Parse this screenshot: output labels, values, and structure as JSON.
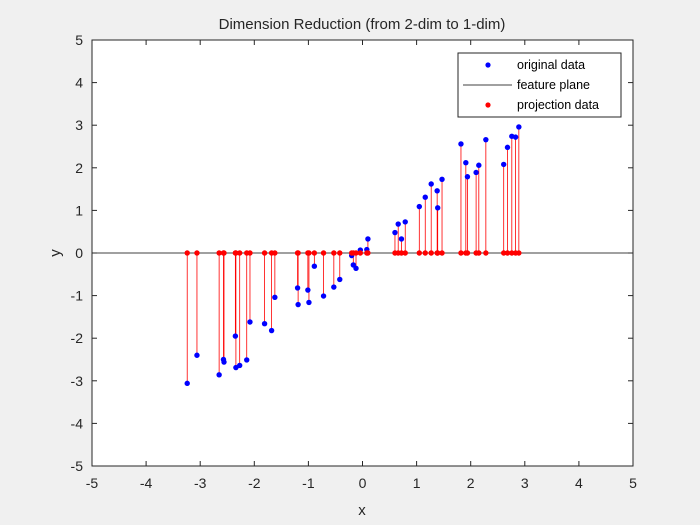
{
  "chart_data": {
    "type": "scatter",
    "title": "Dimension Reduction (from 2-dim to 1-dim)",
    "xlabel": "x",
    "ylabel": "y",
    "xlim": [
      -5,
      5
    ],
    "ylim": [
      -5,
      5
    ],
    "xticks": [
      -5,
      -4,
      -3,
      -2,
      -1,
      0,
      1,
      2,
      3,
      4,
      5
    ],
    "yticks": [
      -5,
      -4,
      -3,
      -2,
      -1,
      0,
      1,
      2,
      3,
      4,
      5
    ],
    "grid": false,
    "legend_position": "top-right",
    "feature_plane": {
      "y": 0
    },
    "colors": {
      "original": "#0000ff",
      "projection": "#ff0000",
      "feature_plane": "#000000",
      "connector": "#ff0000",
      "background": "#f0f0f0",
      "axes_bg": "#ffffff"
    },
    "series": [
      {
        "name": "original data",
        "marker": "dot",
        "color": "#0000ff",
        "points": [
          [
            -3.24,
            -3.06
          ],
          [
            -3.06,
            -2.4
          ],
          [
            -2.65,
            -2.86
          ],
          [
            -2.57,
            -2.5
          ],
          [
            -2.56,
            -2.56
          ],
          [
            -2.35,
            -1.95
          ],
          [
            -2.34,
            -2.69
          ],
          [
            -2.27,
            -2.64
          ],
          [
            -2.14,
            -2.51
          ],
          [
            -2.08,
            -1.62
          ],
          [
            -1.81,
            -1.66
          ],
          [
            -1.68,
            -1.82
          ],
          [
            -1.62,
            -1.04
          ],
          [
            -1.2,
            -0.82
          ],
          [
            -1.19,
            -1.21
          ],
          [
            -1.01,
            -0.87
          ],
          [
            -0.99,
            -1.16
          ],
          [
            -0.89,
            -0.31
          ],
          [
            -0.72,
            -1.01
          ],
          [
            -0.53,
            -0.8
          ],
          [
            -0.42,
            -0.62
          ],
          [
            -0.2,
            -0.06
          ],
          [
            -0.17,
            -0.28
          ],
          [
            -0.12,
            -0.36
          ],
          [
            -0.04,
            0.07
          ],
          [
            0.08,
            0.08
          ],
          [
            0.1,
            0.33
          ],
          [
            0.6,
            0.48
          ],
          [
            0.66,
            0.68
          ],
          [
            0.72,
            0.33
          ],
          [
            0.79,
            0.73
          ],
          [
            1.05,
            1.09
          ],
          [
            1.16,
            1.31
          ],
          [
            1.27,
            1.62
          ],
          [
            1.38,
            1.46
          ],
          [
            1.39,
            1.06
          ],
          [
            1.47,
            1.73
          ],
          [
            1.82,
            2.56
          ],
          [
            1.91,
            2.12
          ],
          [
            1.94,
            1.79
          ],
          [
            2.1,
            1.89
          ],
          [
            2.15,
            2.06
          ],
          [
            2.28,
            2.66
          ],
          [
            2.61,
            2.08
          ],
          [
            2.68,
            2.48
          ],
          [
            2.76,
            2.74
          ],
          [
            2.83,
            2.72
          ],
          [
            2.89,
            2.96
          ]
        ]
      },
      {
        "name": "feature plane",
        "marker": "line",
        "color": "#000000"
      },
      {
        "name": "projection data",
        "marker": "dot",
        "color": "#ff0000",
        "note": "projection of each original point onto y = 0",
        "x": [
          -3.24,
          -3.06,
          -2.65,
          -2.57,
          -2.56,
          -2.35,
          -2.34,
          -2.27,
          -2.14,
          -2.08,
          -1.81,
          -1.68,
          -1.62,
          -1.2,
          -1.19,
          -1.01,
          -0.99,
          -0.89,
          -0.72,
          -0.53,
          -0.42,
          -0.2,
          -0.17,
          -0.12,
          -0.04,
          0.08,
          0.1,
          0.6,
          0.66,
          0.72,
          0.79,
          1.05,
          1.16,
          1.27,
          1.38,
          1.39,
          1.47,
          1.82,
          1.91,
          1.94,
          2.1,
          2.15,
          2.28,
          2.61,
          2.68,
          2.76,
          2.83,
          2.89
        ],
        "y": 0
      }
    ]
  }
}
